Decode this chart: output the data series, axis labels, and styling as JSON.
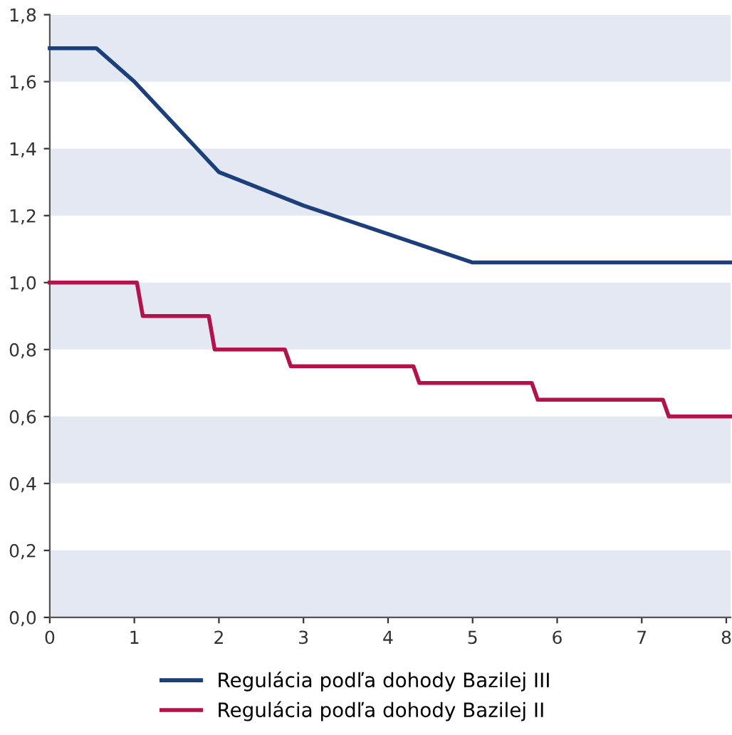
{
  "chart_data": {
    "type": "line",
    "series": [
      {
        "name": "Regulácia podľa dohody Bazilej III",
        "color": "#1c3f7c",
        "x": [
          0,
          0.55,
          1.0,
          2.0,
          3.0,
          5.0,
          8.05
        ],
        "values": [
          1.7,
          1.7,
          1.6,
          1.33,
          1.23,
          1.06,
          1.06
        ]
      },
      {
        "name": "Regulácia podľa dohody Bazilej II",
        "color": "#b1134a",
        "x": [
          0,
          1.03,
          1.1,
          1.88,
          1.95,
          2.78,
          2.85,
          4.3,
          4.37,
          5.7,
          5.77,
          7.25,
          7.32,
          8.05
        ],
        "values": [
          1.0,
          1.0,
          0.9,
          0.9,
          0.8,
          0.8,
          0.75,
          0.75,
          0.7,
          0.7,
          0.65,
          0.65,
          0.6,
          0.6
        ]
      }
    ],
    "xlim": [
      0,
      8.05
    ],
    "xticks": [
      0,
      1,
      2,
      3,
      4,
      5,
      6,
      7,
      8
    ],
    "ylim": [
      0,
      1.8
    ],
    "yticks": [
      {
        "value": 0,
        "label": "0,0"
      },
      {
        "value": 0.2,
        "label": "0,2"
      },
      {
        "value": 0.4,
        "label": "0,4"
      },
      {
        "value": 0.6,
        "label": "0,6"
      },
      {
        "value": 0.8,
        "label": "0,8"
      },
      {
        "value": 1.0,
        "label": "1,0"
      },
      {
        "value": 1.2,
        "label": "1,2"
      },
      {
        "value": 1.4,
        "label": "1,4"
      },
      {
        "value": 1.6,
        "label": "1,6"
      },
      {
        "value": 1.8,
        "label": "1,8"
      }
    ],
    "bands": [
      {
        "axis": "y",
        "from": 0,
        "to": 0.2,
        "color": "#e3e8f2"
      },
      {
        "axis": "y",
        "from": 0.4,
        "to": 0.6,
        "color": "#e3e8f2"
      },
      {
        "axis": "y",
        "from": 0.8,
        "to": 1.0,
        "color": "#e3e8f2"
      },
      {
        "axis": "y",
        "from": 1.2,
        "to": 1.4,
        "color": "#e3e8f2"
      },
      {
        "axis": "y",
        "from": 1.6,
        "to": 1.8,
        "color": "#e3e8f2"
      }
    ],
    "legend": "bottom",
    "marker": "none",
    "line_style": "solid"
  }
}
